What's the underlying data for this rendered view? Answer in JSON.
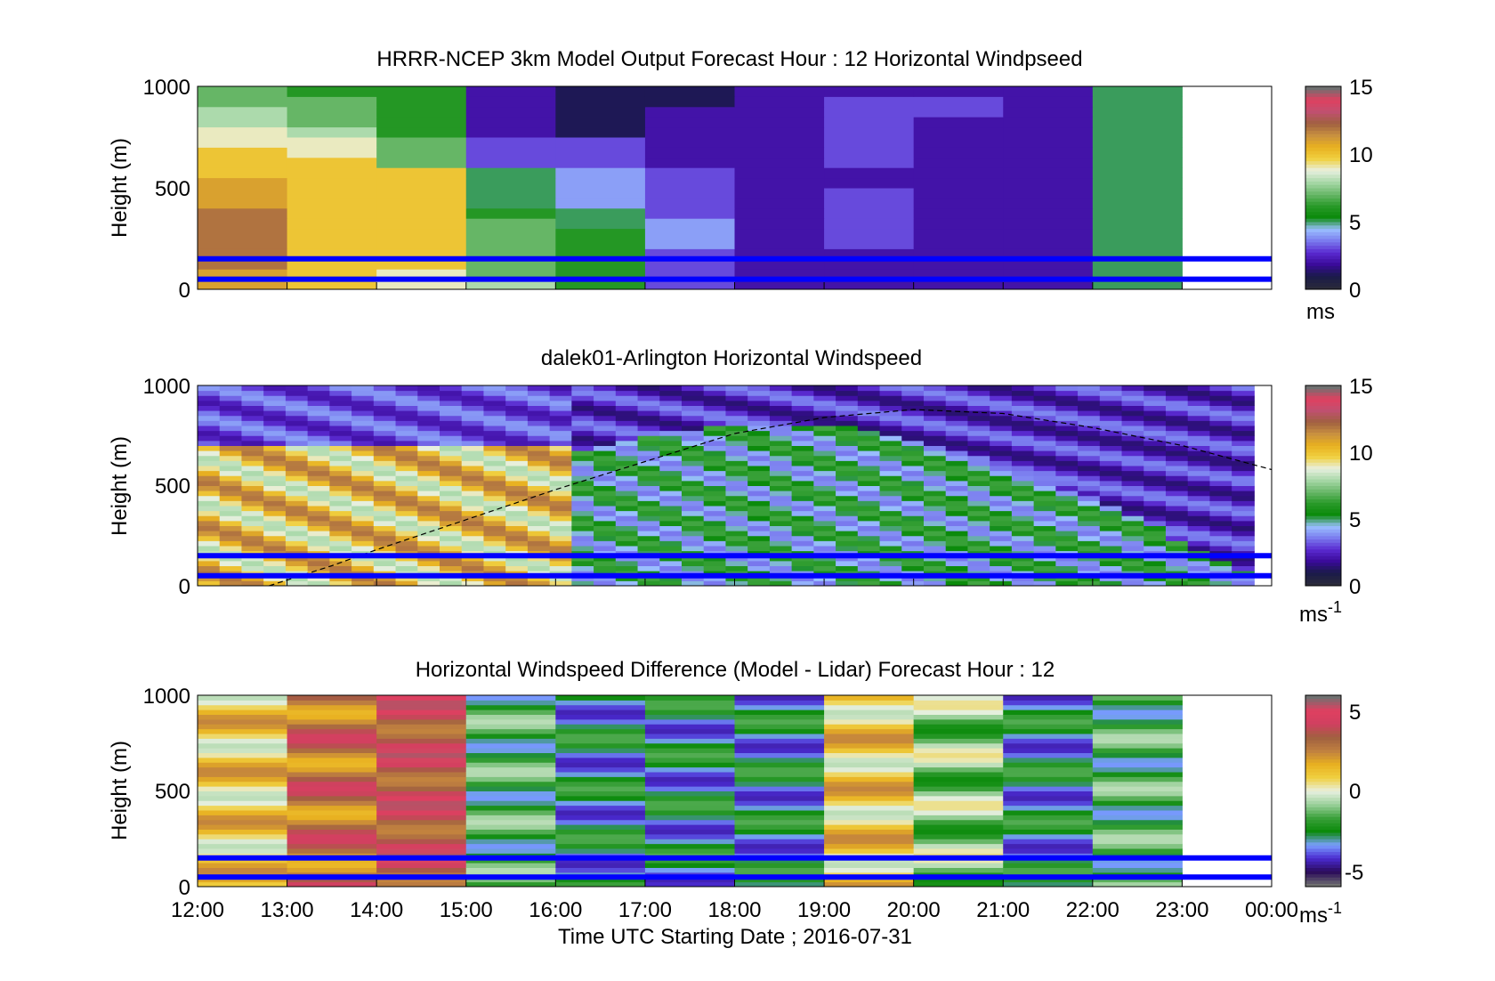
{
  "figure": {
    "xlabel": "Time UTC  Starting Date ; 2016-07-31",
    "x_ticks": [
      "12:00",
      "13:00",
      "14:00",
      "15:00",
      "16:00",
      "17:00",
      "18:00",
      "19:00",
      "20:00",
      "21:00",
      "22:00",
      "23:00",
      "00:00"
    ]
  },
  "colors": {
    "overlay_lines": "#0000ff",
    "pbl_line": "#000000",
    "windspeed_colormap": [
      "#2a2a3a",
      "#1a1a4a",
      "#3a0a9a",
      "#5a2ad0",
      "#7a7aee",
      "#9ac0ff",
      "#0a8a0a",
      "#2a9a2a",
      "#6ab86a",
      "#a8d8a8",
      "#e8f0e0",
      "#f0d040",
      "#e8b020",
      "#c89040",
      "#a06040",
      "#c05070",
      "#e04060",
      "#707070"
    ],
    "difference_colormap": [
      "#707070",
      "#2a0a5a",
      "#4a2ad0",
      "#7aa0ff",
      "#0a8a0a",
      "#3aa03a",
      "#9ad09a",
      "#e8f0e0",
      "#f0d040",
      "#e8b020",
      "#c08040",
      "#a06040",
      "#d04060",
      "#e04060",
      "#707070"
    ]
  },
  "chart_data": [
    {
      "type": "heatmap",
      "title": "HRRR-NCEP 3km Model Output   Forecast Hour : 12 Horizontal Windpseed",
      "ylabel": "Height (m)",
      "ylim": [
        0,
        1000
      ],
      "y_ticks": [
        "0",
        "500",
        "1000"
      ],
      "x_hours": [
        12,
        13,
        14,
        15,
        16,
        17,
        18,
        19,
        20,
        21,
        22
      ],
      "height_levels_m": [
        25,
        75,
        125,
        175,
        225,
        275,
        325,
        375,
        425,
        475,
        525,
        575,
        625,
        675,
        725,
        775,
        825,
        875,
        925,
        975
      ],
      "values_ms": [
        [
          11,
          10,
          9,
          8,
          6,
          3,
          2,
          2,
          2,
          2,
          5
        ],
        [
          11,
          10,
          9,
          7,
          6,
          3,
          2,
          2,
          2,
          2,
          5
        ],
        [
          12,
          10,
          10,
          7,
          6,
          3,
          2,
          2,
          2,
          2,
          5
        ],
        [
          12,
          10,
          10,
          7,
          6,
          3,
          2,
          2,
          2,
          2,
          5
        ],
        [
          12,
          10,
          10,
          7,
          6,
          4,
          2,
          3,
          2,
          2,
          5
        ],
        [
          12,
          10,
          10,
          7,
          6,
          4,
          2,
          3,
          2,
          2,
          5
        ],
        [
          12,
          10,
          10,
          7,
          5,
          4,
          2,
          3,
          2,
          2,
          5
        ],
        [
          12,
          10,
          10,
          6,
          5,
          3,
          2,
          3,
          2,
          2,
          5
        ],
        [
          11,
          10,
          10,
          5,
          4,
          3,
          2,
          3,
          2,
          2,
          5
        ],
        [
          11,
          10,
          10,
          5,
          4,
          3,
          2,
          3,
          2,
          2,
          5
        ],
        [
          11,
          10,
          10,
          5,
          4,
          3,
          2,
          2,
          2,
          2,
          5
        ],
        [
          10,
          10,
          10,
          5,
          4,
          3,
          2,
          2,
          2,
          2,
          5
        ],
        [
          10,
          10,
          7,
          3,
          3,
          2,
          2,
          3,
          2,
          2,
          5
        ],
        [
          10,
          9,
          7,
          3,
          3,
          2,
          2,
          3,
          2,
          2,
          5
        ],
        [
          9,
          9,
          7,
          3,
          3,
          2,
          2,
          3,
          2,
          2,
          5
        ],
        [
          9,
          8,
          6,
          2,
          1,
          2,
          2,
          3,
          2,
          2,
          5
        ],
        [
          8,
          7,
          6,
          2,
          1,
          2,
          2,
          3,
          2,
          2,
          5
        ],
        [
          8,
          7,
          6,
          2,
          1,
          2,
          2,
          3,
          3,
          2,
          5
        ],
        [
          7,
          7,
          6,
          2,
          1,
          1,
          2,
          3,
          3,
          2,
          5
        ],
        [
          7,
          6,
          6,
          2,
          1,
          1,
          2,
          2,
          2,
          2,
          5
        ]
      ],
      "colorbar": {
        "label": "ms",
        "ticks": [
          "0",
          "5",
          "10",
          "15"
        ],
        "range": [
          0,
          15
        ]
      },
      "overlay_heights_m": [
        50,
        150
      ]
    },
    {
      "type": "heatmap",
      "title": "dalek01-Arlington  Horizontal Windspeed",
      "ylabel": "Height (m)",
      "ylim": [
        0,
        1000
      ],
      "y_ticks": [
        "0",
        "500",
        "1000"
      ],
      "colorbar": {
        "label": "ms",
        "label_superscript": "-1",
        "ticks": [
          "0",
          "5",
          "10",
          "15"
        ],
        "range": [
          0,
          15
        ]
      },
      "overlay_heights_m": [
        50,
        150
      ],
      "pbl_height_curve": {
        "x_hours": [
          12.8,
          13.5,
          14,
          15,
          16,
          17,
          18,
          19,
          20,
          21,
          22,
          23,
          24
        ],
        "height_m": [
          0,
          100,
          180,
          330,
          480,
          620,
          760,
          840,
          880,
          860,
          790,
          700,
          580
        ]
      }
    },
    {
      "type": "heatmap",
      "title": "Horizontal Windspeed Difference (Model - Lidar) Forecast Hour : 12",
      "ylabel": "Height (m)",
      "ylim": [
        0,
        1000
      ],
      "y_ticks": [
        "0",
        "500",
        "1000"
      ],
      "x_hours": [
        12,
        13,
        14,
        15,
        16,
        17,
        18,
        19,
        20,
        21,
        22
      ],
      "colorbar": {
        "label": "ms",
        "label_superscript": "-1",
        "ticks": [
          "-5",
          "0",
          "5"
        ],
        "range": [
          -6,
          6
        ]
      },
      "overlay_heights_m": [
        50,
        150
      ]
    }
  ]
}
